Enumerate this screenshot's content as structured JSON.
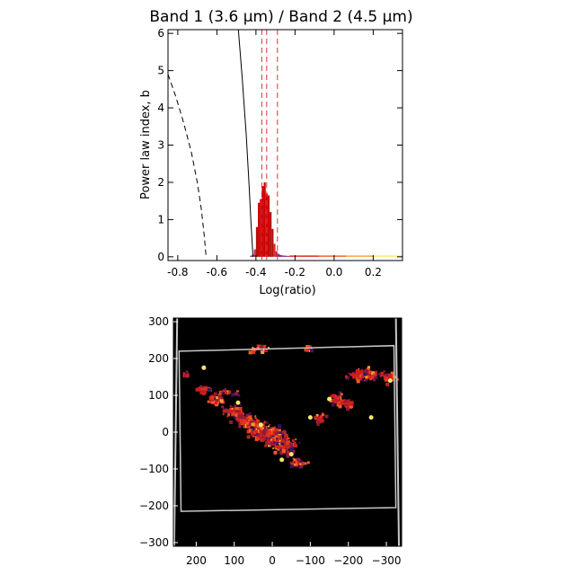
{
  "chart_data": [
    {
      "type": "histogram",
      "title": "Band 1 (3.6 μm) / Band 2 (4.5 μm)",
      "xlabel": "Log(ratio)",
      "ylabel": "Power law index, b",
      "xlim": [
        -0.85,
        0.35
      ],
      "ylim": [
        -0.1,
        6.1
      ],
      "xticks": [
        "-0.8",
        "-0.6",
        "-0.4",
        "-0.2",
        "0.0",
        "0.2"
      ],
      "xtick_values": [
        -0.8,
        -0.6,
        -0.4,
        -0.2,
        0.0,
        0.2
      ],
      "yticks": [
        "0",
        "1",
        "2",
        "3",
        "4",
        "5",
        "6"
      ],
      "ytick_values": [
        0,
        1,
        2,
        3,
        4,
        5,
        6
      ],
      "bins": {
        "start": -0.43,
        "width": 0.01,
        "values": [
          0.03,
          0.06,
          0.2,
          0.8,
          1.45,
          1.55,
          1.9,
          2.0,
          1.7,
          1.65,
          1.2,
          0.75,
          0.35,
          0.15,
          0.08,
          0.05,
          0.04,
          0.03,
          0.03,
          0.02
        ]
      },
      "tail": {
        "start": -0.23,
        "width": 0.01,
        "values": [
          0.03,
          0.025,
          0.022,
          0.02,
          0.018,
          0.016,
          0.015,
          0.014,
          0.013,
          0.012,
          0.012,
          0.011,
          0.011,
          0.01,
          0.01,
          0.01,
          0.01,
          0.01,
          0.009,
          0.009,
          0.009,
          0.008,
          0.008,
          0.008,
          0.008,
          0.007,
          0.007,
          0.007,
          0.006,
          0.006,
          0.006,
          0.005,
          0.005,
          0.005,
          0.004,
          0.004,
          0.004,
          0.003,
          0.003,
          0.003,
          0.003,
          0.002,
          0.002,
          0.002,
          0.002,
          0.002,
          0.002,
          0.002,
          0.002,
          0.002,
          0.002,
          0.002,
          0.002,
          0.002,
          0.002,
          0.002,
          0.002,
          0.002
        ]
      },
      "dashed_curve": [
        [
          -0.85,
          4.9
        ],
        [
          -0.81,
          4.3
        ],
        [
          -0.77,
          3.6
        ],
        [
          -0.73,
          2.8
        ],
        [
          -0.7,
          2.0
        ],
        [
          -0.68,
          1.3
        ],
        [
          -0.665,
          0.6
        ],
        [
          -0.655,
          0.0
        ]
      ],
      "solid_curve": [
        [
          -0.49,
          6.1
        ],
        [
          -0.47,
          4.8
        ],
        [
          -0.45,
          3.3
        ],
        [
          -0.435,
          1.9
        ],
        [
          -0.425,
          0.9
        ],
        [
          -0.415,
          0.0
        ]
      ],
      "vlines": [
        -0.37,
        -0.345,
        -0.29
      ]
    },
    {
      "type": "heatmap",
      "xlim": [
        260,
        -340
      ],
      "ylim": [
        -310,
        310
      ],
      "xticks": [
        "200",
        "100",
        "0",
        "−100",
        "−200",
        "−300"
      ],
      "xtick_values": [
        200,
        100,
        0,
        -100,
        -200,
        -300
      ],
      "yticks": [
        "300",
        "200",
        "100",
        "0",
        "−100",
        "−200",
        "−300"
      ],
      "ytick_values": [
        300,
        200,
        100,
        0,
        -100,
        -200,
        -300
      ],
      "footprint": [
        [
          245,
          220
        ],
        [
          -320,
          235
        ],
        [
          -325,
          -205
        ],
        [
          240,
          -215
        ]
      ],
      "border_edges": [
        [
          [
            258,
            -310
          ],
          [
            250,
            310
          ]
        ],
        [
          [
            -333,
            -310
          ],
          [
            -325,
            310
          ]
        ]
      ],
      "blobs": [
        [
          185,
          120,
          14,
          8,
          6
        ],
        [
          150,
          90,
          18,
          10,
          10
        ],
        [
          110,
          60,
          20,
          12,
          12
        ],
        [
          70,
          35,
          22,
          14,
          16
        ],
        [
          30,
          10,
          26,
          18,
          22
        ],
        [
          0,
          -10,
          28,
          18,
          26
        ],
        [
          -30,
          -30,
          22,
          16,
          20
        ],
        [
          -60,
          -80,
          14,
          10,
          8
        ],
        [
          -240,
          160,
          30,
          12,
          18
        ],
        [
          -300,
          150,
          16,
          10,
          8
        ],
        [
          -170,
          90,
          16,
          12,
          8
        ],
        [
          -120,
          40,
          10,
          10,
          5
        ],
        [
          40,
          230,
          20,
          8,
          5
        ],
        [
          120,
          110,
          20,
          8,
          4
        ],
        [
          230,
          160,
          6,
          4,
          2
        ],
        [
          -90,
          230,
          8,
          6,
          2
        ],
        [
          -200,
          80,
          10,
          8,
          4
        ]
      ],
      "bright_spots": [
        [
          180,
          175
        ],
        [
          -310,
          140
        ],
        [
          -25,
          -75
        ],
        [
          -260,
          40
        ],
        [
          -150,
          90
        ],
        [
          90,
          80
        ],
        [
          -100,
          40
        ],
        [
          30,
          20
        ],
        [
          -50,
          -60
        ]
      ],
      "colors": {
        "background": "#000000",
        "outline": "#c8c8c8",
        "ramp": [
          "#3c145a",
          "#8c1a3c",
          "#c81e1e",
          "#e6321e",
          "#f05a28",
          "#f5a032",
          "#fae66e"
        ]
      }
    }
  ]
}
